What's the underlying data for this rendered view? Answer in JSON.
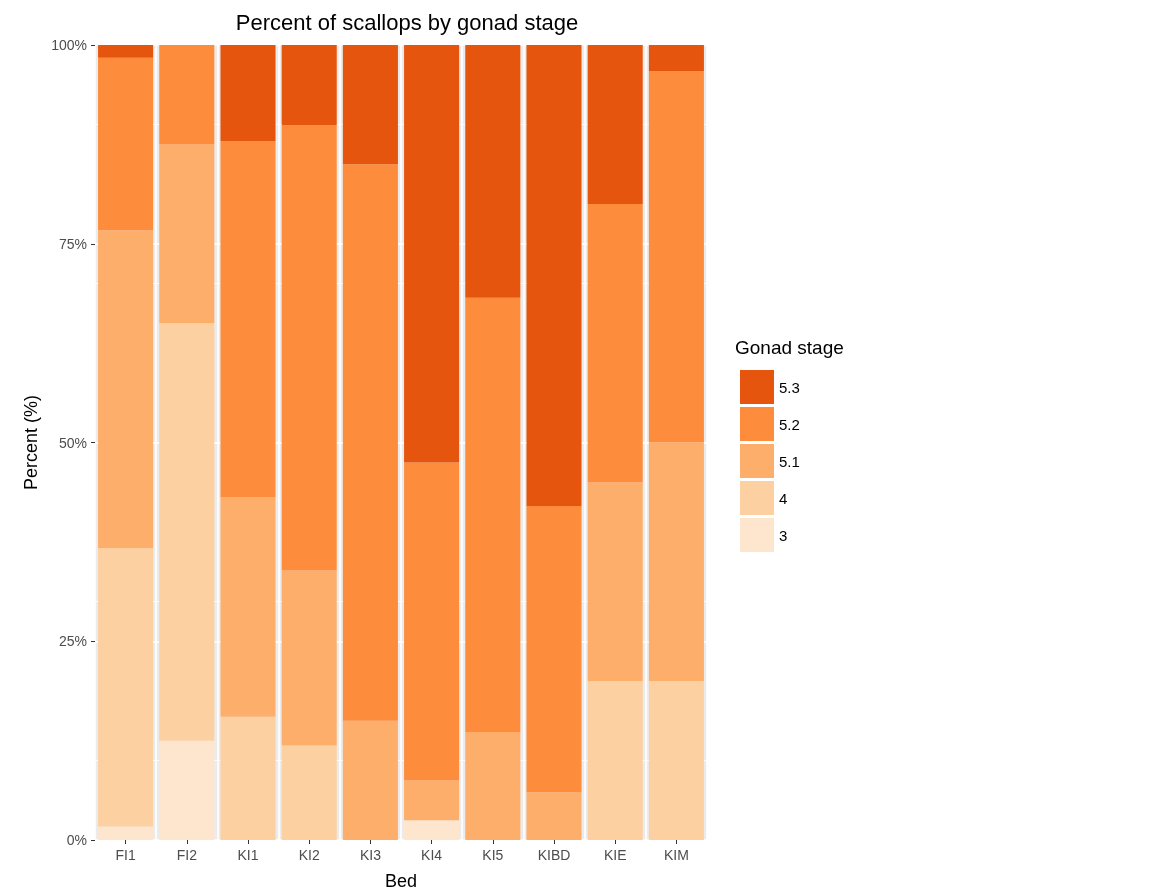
{
  "chart_data": {
    "type": "bar",
    "title": "Percent of scallops by gonad stage",
    "xlabel": "Bed",
    "ylabel": "Percent (%)",
    "legend_title": "Gonad stage",
    "categories": [
      "FI1",
      "FI2",
      "KI1",
      "KI2",
      "KI3",
      "KI4",
      "KI5",
      "KIBD",
      "KIE",
      "KIM"
    ],
    "stacked": true,
    "series": [
      {
        "name": "3",
        "color": "#fee6ce",
        "values": [
          1.7,
          12.5,
          0,
          0,
          0,
          2.5,
          0,
          0,
          0,
          0
        ]
      },
      {
        "name": "4",
        "color": "#fdd0a2",
        "values": [
          35,
          52.5,
          15.5,
          11.9,
          0,
          0,
          0,
          0,
          20,
          20
        ]
      },
      {
        "name": "5.1",
        "color": "#fdae6b",
        "values": [
          40,
          22.5,
          27.6,
          22,
          15,
          5,
          13.6,
          6,
          25,
          30
        ]
      },
      {
        "name": "5.2",
        "color": "#fd8d3c",
        "values": [
          21.7,
          12.5,
          44.8,
          56,
          70,
          40,
          54.6,
          36,
          35,
          46.7
        ]
      },
      {
        "name": "5.3",
        "color": "#e6550d",
        "values": [
          1.6,
          0,
          12.1,
          10.1,
          15,
          52.5,
          31.8,
          58,
          20,
          3.3
        ]
      }
    ],
    "ylim": [
      0,
      100
    ],
    "yticks": [
      {
        "value": 0,
        "label": "0%"
      },
      {
        "value": 25,
        "label": "25%"
      },
      {
        "value": 50,
        "label": "50%"
      },
      {
        "value": 75,
        "label": "75%"
      },
      {
        "value": 100,
        "label": "100%"
      }
    ],
    "grid": true,
    "legend": "right"
  }
}
